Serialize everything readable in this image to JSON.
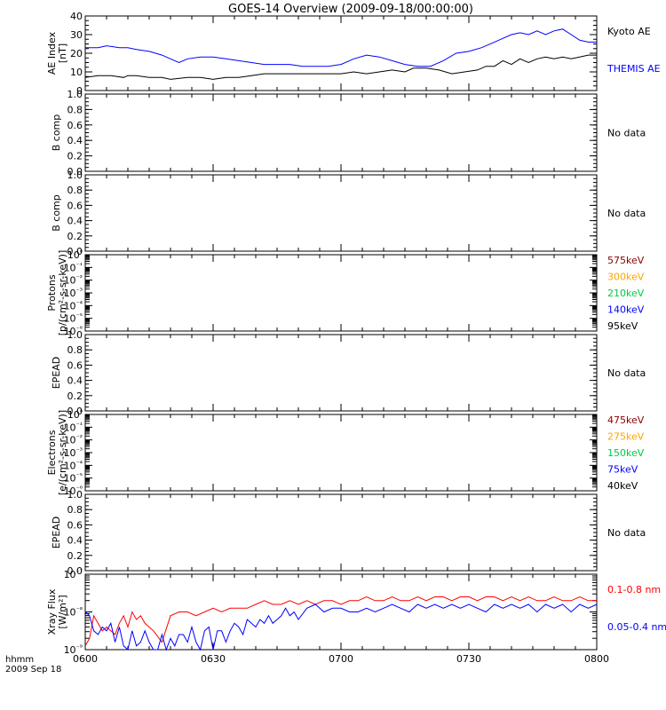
{
  "title": "GOES-14 Overview (2009-09-18/00:00:00)",
  "time_axis": {
    "ticks": [
      "0600",
      "0630",
      "0700",
      "0730",
      "0800"
    ],
    "tick_minutes": [
      0,
      30,
      60,
      90,
      120
    ],
    "xlim_minutes": [
      0,
      120
    ],
    "corner_label_1": "hhmm",
    "corner_label_2": "2009 Sep 18"
  },
  "colors": {
    "black": "#000000",
    "blue": "#0000ff",
    "red": "#ff0000",
    "dark_red": "#8b0000",
    "orange": "#ffa500",
    "green": "#00cc44"
  },
  "chart_data": [
    {
      "type": "line",
      "panel": "ae",
      "ylabel": "AE Index",
      "yunit": "[nT]",
      "ylim": [
        0,
        40
      ],
      "yticks": [
        "0",
        "10",
        "20",
        "30",
        "40"
      ],
      "series": [
        {
          "name": "Kyoto AE",
          "color": "#000000",
          "x": [
            0,
            3,
            6,
            9,
            10,
            12,
            15,
            18,
            20,
            24,
            27,
            30,
            33,
            36,
            39,
            42,
            45,
            48,
            51,
            54,
            57,
            60,
            63,
            66,
            69,
            72,
            75,
            77,
            80,
            83,
            86,
            89,
            92,
            94,
            96,
            98,
            100,
            102,
            104,
            106,
            108,
            110,
            112,
            114,
            116,
            118,
            120
          ],
          "y": [
            7,
            8,
            8,
            7,
            8,
            8,
            7,
            7,
            6,
            7,
            7,
            6,
            7,
            7,
            8,
            9,
            9,
            9,
            9,
            9,
            9,
            9,
            10,
            9,
            10,
            11,
            10,
            12,
            12,
            11,
            9,
            10,
            11,
            13,
            13,
            16,
            14,
            17,
            15,
            17,
            18,
            17,
            18,
            17,
            18,
            19,
            19
          ]
        },
        {
          "name": "THEMIS AE",
          "color": "#0000ff",
          "x": [
            0,
            3,
            5,
            8,
            10,
            12,
            15,
            18,
            20,
            22,
            24,
            27,
            30,
            33,
            36,
            39,
            42,
            45,
            48,
            51,
            54,
            57,
            60,
            63,
            66,
            69,
            72,
            75,
            78,
            81,
            84,
            87,
            90,
            93,
            96,
            98,
            100,
            102,
            104,
            106,
            108,
            110,
            112,
            114,
            116,
            118,
            120
          ],
          "y": [
            23,
            23,
            24,
            23,
            23,
            22,
            21,
            19,
            17,
            15,
            17,
            18,
            18,
            17,
            16,
            15,
            14,
            14,
            14,
            13,
            13,
            13,
            14,
            17,
            19,
            18,
            16,
            14,
            13,
            13,
            16,
            20,
            21,
            23,
            26,
            28,
            30,
            31,
            30,
            32,
            30,
            32,
            33,
            30,
            27,
            26,
            26
          ]
        }
      ],
      "right_labels": [
        {
          "text": "Kyoto AE",
          "color": "#000000"
        },
        {
          "text": "THEMIS AE",
          "color": "#0000ff"
        }
      ]
    },
    {
      "type": "line",
      "panel": "bcomp1",
      "ylabel": "B comp",
      "ylim": [
        0,
        1
      ],
      "yticks": [
        "0.0",
        "0.2",
        "0.4",
        "0.6",
        "0.8",
        "1.0"
      ],
      "series": [],
      "right_labels": [
        {
          "text": "No data",
          "color": "#000000"
        }
      ]
    },
    {
      "type": "line",
      "panel": "bcomp2",
      "ylabel": "B comp",
      "ylim": [
        0,
        1
      ],
      "yticks": [
        "0.0",
        "0.2",
        "0.4",
        "0.6",
        "0.8",
        "1.0"
      ],
      "series": [],
      "right_labels": [
        {
          "text": "No data",
          "color": "#000000"
        }
      ]
    },
    {
      "type": "line",
      "panel": "protons",
      "ylabel": "Protons",
      "yunit": "[p/(cm²-s-sr-keV)]",
      "log_scale": true,
      "ylim_exp": [
        -6,
        0
      ],
      "yticks": [
        "10⁻⁶",
        "10⁻⁵",
        "10⁻⁴",
        "10⁻³",
        "10⁻²",
        "10⁻¹",
        "10⁰"
      ],
      "series": [],
      "right_labels": [
        {
          "text": "575keV",
          "color": "#8b0000"
        },
        {
          "text": "300keV",
          "color": "#ffa500"
        },
        {
          "text": "210keV",
          "color": "#00cc44"
        },
        {
          "text": "140keV",
          "color": "#0000ff"
        },
        {
          "text": "95keV",
          "color": "#000000"
        }
      ]
    },
    {
      "type": "line",
      "panel": "epead1",
      "ylabel": "EPEAD",
      "ylim": [
        0,
        1
      ],
      "yticks": [
        "0.0",
        "0.2",
        "0.4",
        "0.6",
        "0.8",
        "1.0"
      ],
      "series": [],
      "right_labels": [
        {
          "text": "No data",
          "color": "#000000"
        }
      ]
    },
    {
      "type": "line",
      "panel": "electrons",
      "ylabel": "Electrons",
      "yunit": "[e/(cm²-s-sr-keV)]",
      "log_scale": true,
      "ylim_exp": [
        -6,
        0
      ],
      "yticks": [
        "10⁻⁶",
        "10⁻⁵",
        "10⁻⁴",
        "10⁻³",
        "10⁻²",
        "10⁻¹",
        "10⁰"
      ],
      "series": [],
      "right_labels": [
        {
          "text": "475keV",
          "color": "#8b0000"
        },
        {
          "text": "275keV",
          "color": "#ffa500"
        },
        {
          "text": "150keV",
          "color": "#00cc44"
        },
        {
          "text": "75keV",
          "color": "#0000ff"
        },
        {
          "text": "40keV",
          "color": "#000000"
        }
      ]
    },
    {
      "type": "line",
      "panel": "epead2",
      "ylabel": "EPEAD",
      "ylim": [
        0,
        1
      ],
      "yticks": [
        "0.0",
        "0.2",
        "0.4",
        "0.6",
        "0.8",
        "1.0"
      ],
      "series": [],
      "right_labels": [
        {
          "text": "No data",
          "color": "#000000"
        }
      ]
    },
    {
      "type": "line",
      "panel": "xray",
      "ylabel": "Xray Flux",
      "yunit": "[W/m²]",
      "log_scale": true,
      "ylim_exp": [
        -9,
        -7
      ],
      "yticks": [
        "10⁻⁹",
        "10⁻⁸",
        "10⁻⁷"
      ],
      "series": [
        {
          "name": "0.1-0.8 nm",
          "color": "#ff0000",
          "x": [
            0,
            1,
            2,
            3,
            4,
            5,
            6,
            7,
            8,
            9,
            10,
            11,
            12,
            13,
            14,
            16,
            18,
            20,
            22,
            24,
            26,
            28,
            30,
            32,
            34,
            36,
            38,
            40,
            42,
            44,
            46,
            48,
            50,
            52,
            54,
            56,
            58,
            60,
            62,
            64,
            66,
            68,
            70,
            72,
            74,
            76,
            78,
            80,
            82,
            84,
            86,
            88,
            90,
            92,
            94,
            96,
            98,
            100,
            102,
            104,
            106,
            108,
            110,
            112,
            114,
            116,
            118,
            120
          ],
          "y": [
            -8.9,
            -8.7,
            -8.1,
            -8.3,
            -8.5,
            -8.4,
            -8.5,
            -8.6,
            -8.3,
            -8.1,
            -8.4,
            -8.0,
            -8.2,
            -8.1,
            -8.3,
            -8.5,
            -8.8,
            -8.1,
            -8.0,
            -8.0,
            -8.1,
            -8.0,
            -7.9,
            -8.0,
            -7.9,
            -7.9,
            -7.9,
            -7.8,
            -7.7,
            -7.8,
            -7.8,
            -7.7,
            -7.8,
            -7.7,
            -7.8,
            -7.7,
            -7.7,
            -7.8,
            -7.7,
            -7.7,
            -7.6,
            -7.7,
            -7.7,
            -7.6,
            -7.7,
            -7.7,
            -7.6,
            -7.7,
            -7.6,
            -7.6,
            -7.7,
            -7.6,
            -7.6,
            -7.7,
            -7.6,
            -7.6,
            -7.7,
            -7.6,
            -7.7,
            -7.6,
            -7.7,
            -7.7,
            -7.6,
            -7.7,
            -7.7,
            -7.6,
            -7.7,
            -7.7
          ]
        },
        {
          "name": "0.05-0.4 nm",
          "color": "#0000ff",
          "x": [
            0,
            1,
            2,
            3,
            4,
            5,
            6,
            7,
            8,
            9,
            10,
            11,
            12,
            13,
            14,
            15,
            16,
            17,
            18,
            19,
            20,
            21,
            22,
            23,
            24,
            25,
            26,
            27,
            28,
            29,
            30,
            31,
            32,
            33,
            34,
            35,
            36,
            37,
            38,
            39,
            40,
            41,
            42,
            43,
            44,
            45,
            46,
            47,
            48,
            49,
            50,
            52,
            54,
            56,
            58,
            60,
            62,
            64,
            66,
            68,
            70,
            72,
            74,
            76,
            78,
            80,
            82,
            84,
            86,
            88,
            90,
            92,
            94,
            96,
            98,
            100,
            102,
            104,
            106,
            108,
            110,
            112,
            114,
            116,
            118,
            120
          ],
          "y": [
            -8.0,
            -8.1,
            -8.5,
            -8.6,
            -8.4,
            -8.5,
            -8.3,
            -8.8,
            -8.4,
            -8.9,
            -9.0,
            -8.5,
            -8.9,
            -8.8,
            -8.5,
            -8.8,
            -9.0,
            -9.0,
            -8.6,
            -9.0,
            -8.7,
            -8.9,
            -8.6,
            -8.6,
            -8.8,
            -8.4,
            -8.8,
            -9.0,
            -8.5,
            -8.4,
            -9.0,
            -8.5,
            -8.5,
            -8.8,
            -8.5,
            -8.3,
            -8.4,
            -8.6,
            -8.2,
            -8.3,
            -8.4,
            -8.2,
            -8.3,
            -8.1,
            -8.3,
            -8.2,
            -8.1,
            -7.9,
            -8.1,
            -8.0,
            -8.2,
            -7.9,
            -7.8,
            -8.0,
            -7.9,
            -7.9,
            -8.0,
            -8.0,
            -7.9,
            -8.0,
            -7.9,
            -7.8,
            -7.9,
            -8.0,
            -7.8,
            -7.9,
            -7.8,
            -7.9,
            -7.8,
            -7.9,
            -7.8,
            -7.9,
            -8.0,
            -7.8,
            -7.9,
            -7.8,
            -7.9,
            -7.8,
            -8.0,
            -7.8,
            -7.9,
            -7.8,
            -8.0,
            -7.8,
            -7.9,
            -7.8
          ]
        }
      ],
      "right_labels": [
        {
          "text": "0.1-0.8 nm",
          "color": "#ff0000"
        },
        {
          "text": "0.05-0.4 nm",
          "color": "#0000ff"
        }
      ]
    }
  ]
}
